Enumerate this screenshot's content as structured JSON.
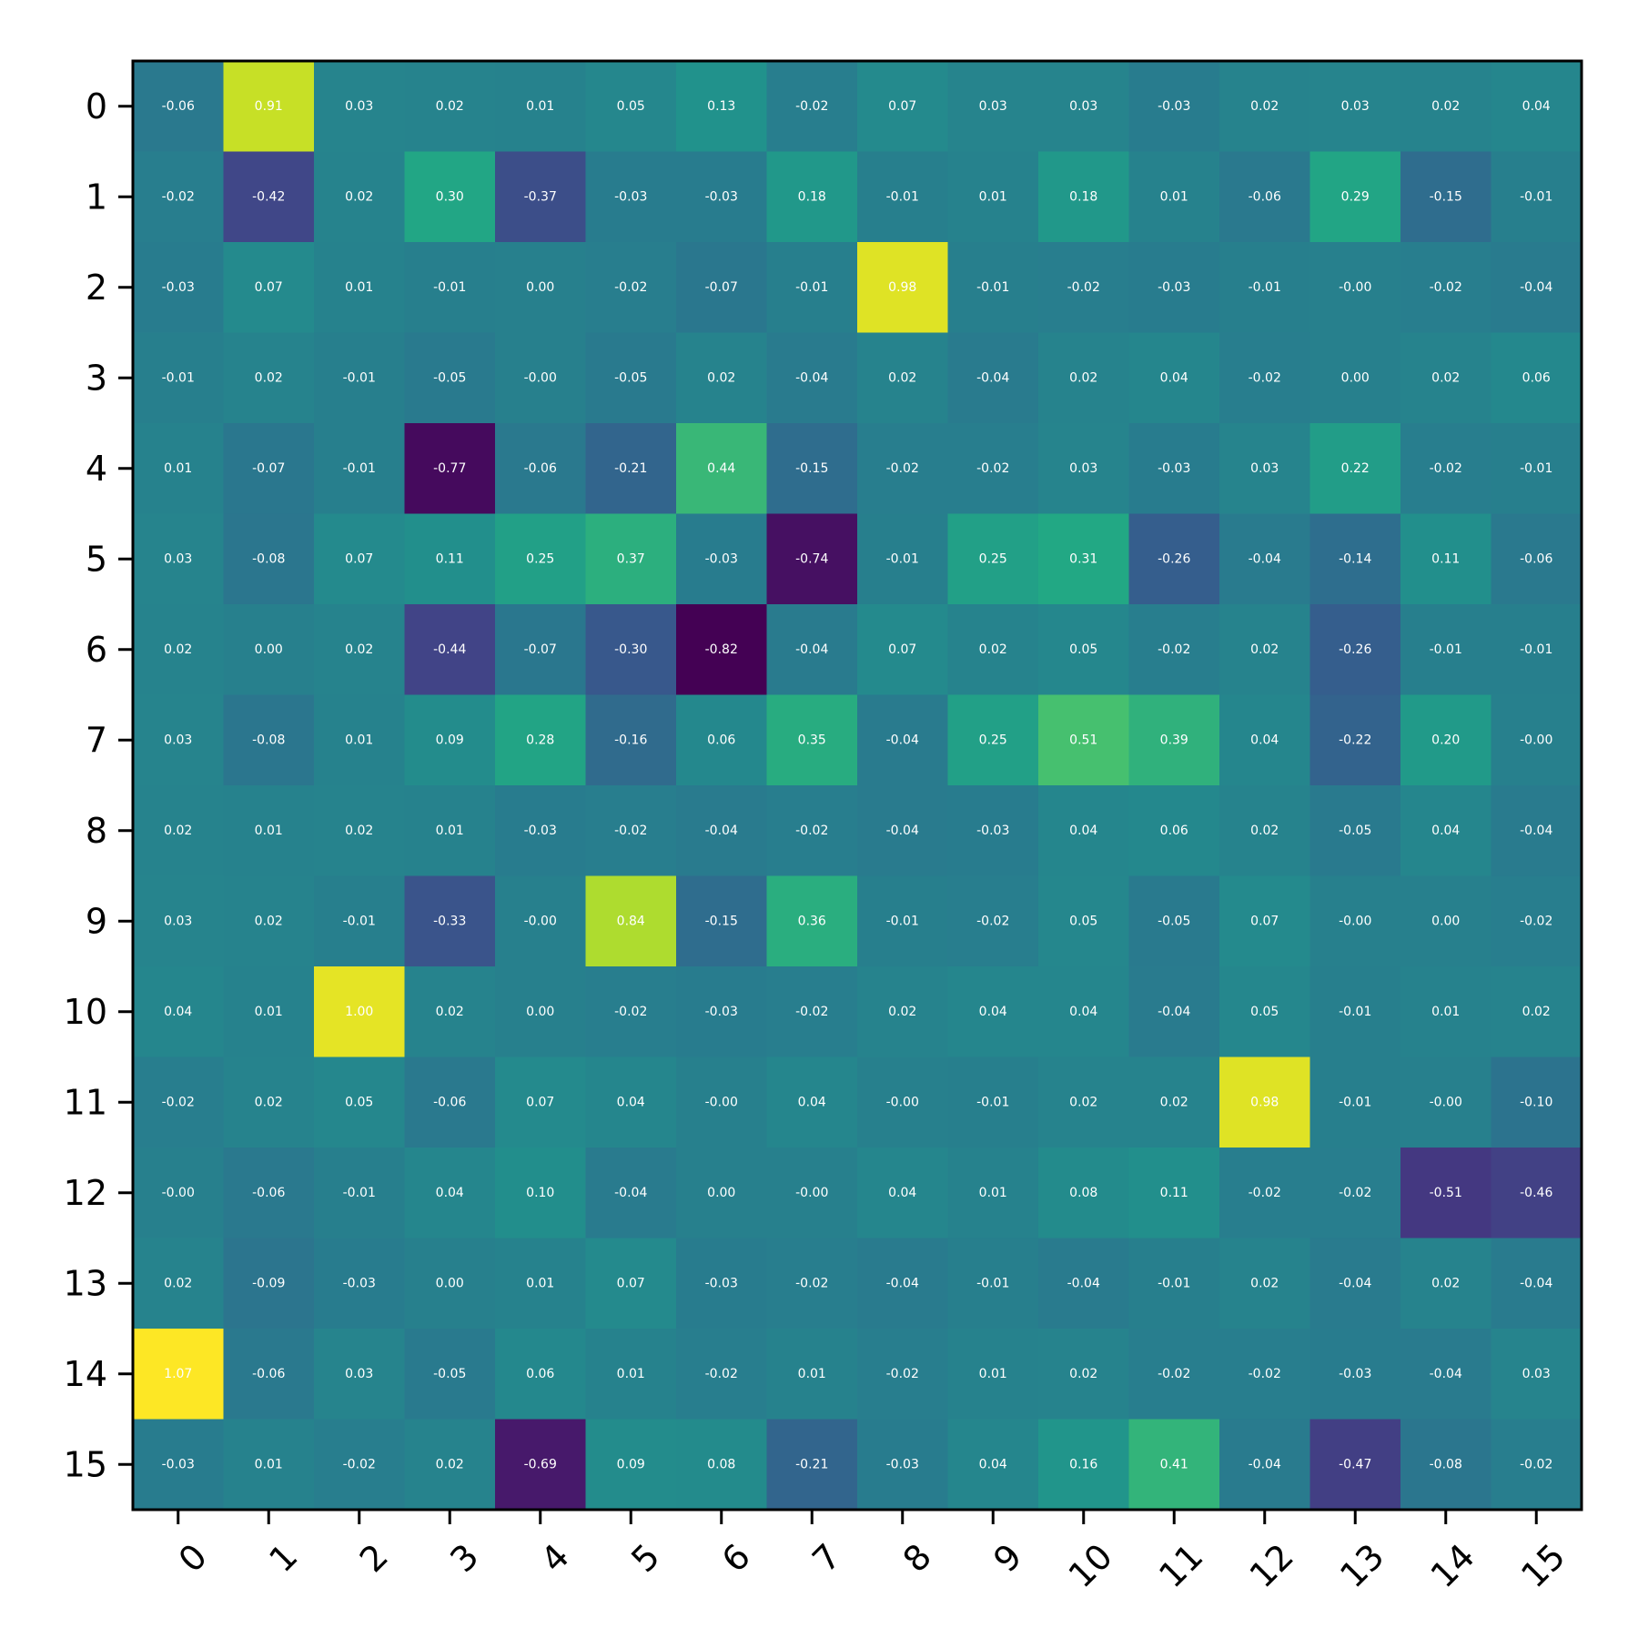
{
  "chart_data": {
    "type": "heatmap",
    "title": "",
    "xlabel": "",
    "ylabel": "",
    "colormap": "viridis",
    "vmin": -0.82,
    "vmax": 1.07,
    "x_categories": [
      "0",
      "1",
      "2",
      "3",
      "4",
      "5",
      "6",
      "7",
      "8",
      "9",
      "10",
      "11",
      "12",
      "13",
      "14",
      "15"
    ],
    "y_categories": [
      "0",
      "1",
      "2",
      "3",
      "4",
      "5",
      "6",
      "7",
      "8",
      "9",
      "10",
      "11",
      "12",
      "13",
      "14",
      "15"
    ],
    "values": [
      [
        "-0.06",
        "0.91",
        "0.03",
        "0.02",
        "0.01",
        "0.05",
        "0.13",
        "-0.02",
        "0.07",
        "0.03",
        "0.03",
        "-0.03",
        "0.02",
        "0.03",
        "0.02",
        "0.04"
      ],
      [
        "-0.02",
        "-0.42",
        "0.02",
        "0.30",
        "-0.37",
        "-0.03",
        "-0.03",
        "0.18",
        "-0.01",
        "0.01",
        "0.18",
        "0.01",
        "-0.06",
        "0.29",
        "-0.15",
        "-0.01"
      ],
      [
        "-0.03",
        "0.07",
        "0.01",
        "-0.01",
        "0.00",
        "-0.02",
        "-0.07",
        "-0.01",
        "0.98",
        "-0.01",
        "-0.02",
        "-0.03",
        "-0.01",
        "-0.00",
        "-0.02",
        "-0.04"
      ],
      [
        "-0.01",
        "0.02",
        "-0.01",
        "-0.05",
        "-0.00",
        "-0.05",
        "0.02",
        "-0.04",
        "0.02",
        "-0.04",
        "0.02",
        "0.04",
        "-0.02",
        "0.00",
        "0.02",
        "0.06"
      ],
      [
        "0.01",
        "-0.07",
        "-0.01",
        "-0.77",
        "-0.06",
        "-0.21",
        "0.44",
        "-0.15",
        "-0.02",
        "-0.02",
        "0.03",
        "-0.03",
        "0.03",
        "0.22",
        "-0.02",
        "-0.01"
      ],
      [
        "0.03",
        "-0.08",
        "0.07",
        "0.11",
        "0.25",
        "0.37",
        "-0.03",
        "-0.74",
        "-0.01",
        "0.25",
        "0.31",
        "-0.26",
        "-0.04",
        "-0.14",
        "0.11",
        "-0.06"
      ],
      [
        "0.02",
        "0.00",
        "0.02",
        "-0.44",
        "-0.07",
        "-0.30",
        "-0.82",
        "-0.04",
        "0.07",
        "0.02",
        "0.05",
        "-0.02",
        "0.02",
        "-0.26",
        "-0.01",
        "-0.01"
      ],
      [
        "0.03",
        "-0.08",
        "0.01",
        "0.09",
        "0.28",
        "-0.16",
        "0.06",
        "0.35",
        "-0.04",
        "0.25",
        "0.51",
        "0.39",
        "0.04",
        "-0.22",
        "0.20",
        "-0.00"
      ],
      [
        "0.02",
        "0.01",
        "0.02",
        "0.01",
        "-0.03",
        "-0.02",
        "-0.04",
        "-0.02",
        "-0.04",
        "-0.03",
        "0.04",
        "0.06",
        "0.02",
        "-0.05",
        "0.04",
        "-0.04"
      ],
      [
        "0.03",
        "0.02",
        "-0.01",
        "-0.33",
        "-0.00",
        "0.84",
        "-0.15",
        "0.36",
        "-0.01",
        "-0.02",
        "0.05",
        "-0.05",
        "0.07",
        "-0.00",
        "0.00",
        "-0.02"
      ],
      [
        "0.04",
        "0.01",
        "1.00",
        "0.02",
        "0.00",
        "-0.02",
        "-0.03",
        "-0.02",
        "0.02",
        "0.04",
        "0.04",
        "-0.04",
        "0.05",
        "-0.01",
        "0.01",
        "0.02"
      ],
      [
        "-0.02",
        "0.02",
        "0.05",
        "-0.06",
        "0.07",
        "0.04",
        "-0.00",
        "0.04",
        "-0.00",
        "-0.01",
        "0.02",
        "0.02",
        "0.98",
        "-0.01",
        "-0.00",
        "-0.10"
      ],
      [
        "-0.00",
        "-0.06",
        "-0.01",
        "0.04",
        "0.10",
        "-0.04",
        "0.00",
        "-0.00",
        "0.04",
        "0.01",
        "0.08",
        "0.11",
        "-0.02",
        "-0.02",
        "-0.51",
        "-0.46"
      ],
      [
        "0.02",
        "-0.09",
        "-0.03",
        "0.00",
        "0.01",
        "0.07",
        "-0.03",
        "-0.02",
        "-0.04",
        "-0.01",
        "-0.04",
        "-0.01",
        "0.02",
        "-0.04",
        "0.02",
        "-0.04"
      ],
      [
        "1.07",
        "-0.06",
        "0.03",
        "-0.05",
        "0.06",
        "0.01",
        "-0.02",
        "0.01",
        "-0.02",
        "0.01",
        "0.02",
        "-0.02",
        "-0.02",
        "-0.03",
        "-0.04",
        "0.03"
      ],
      [
        "-0.03",
        "0.01",
        "-0.02",
        "0.02",
        "-0.69",
        "0.09",
        "0.08",
        "-0.21",
        "-0.03",
        "0.04",
        "0.16",
        "0.41",
        "-0.04",
        "-0.47",
        "-0.08",
        "-0.02"
      ]
    ]
  }
}
